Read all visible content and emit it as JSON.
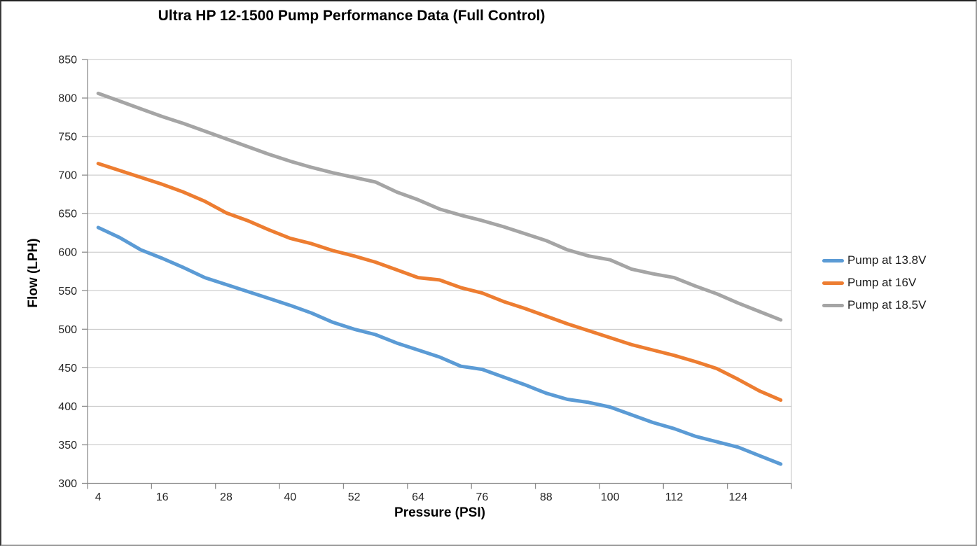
{
  "chart_data": {
    "type": "line",
    "title": "Ultra HP 12-1500 Pump Performance Data (Full Control)",
    "xlabel": "Pressure (PSI)",
    "ylabel": "Flow (LPH)",
    "x": [
      4,
      8,
      12,
      16,
      20,
      24,
      28,
      32,
      36,
      40,
      44,
      48,
      52,
      56,
      60,
      64,
      68,
      72,
      76,
      80,
      84,
      88,
      92,
      96,
      100,
      104,
      108,
      112,
      116,
      120,
      124,
      128,
      132
    ],
    "x_tick_labels": [
      4,
      16,
      28,
      40,
      52,
      64,
      76,
      88,
      100,
      112,
      124
    ],
    "y_ticks": [
      300,
      350,
      400,
      450,
      500,
      550,
      600,
      650,
      700,
      750,
      800,
      850
    ],
    "ylim": [
      300,
      850
    ],
    "grid": "horizontal",
    "legend_position": "right",
    "series": [
      {
        "name": "Pump at 13.8V",
        "color": "#5B9BD5",
        "values": [
          632,
          619,
          603,
          592,
          580,
          567,
          558,
          549,
          540,
          531,
          521,
          509,
          500,
          493,
          482,
          473,
          464,
          452,
          448,
          438,
          428,
          417,
          409,
          405,
          399,
          389,
          379,
          371,
          361,
          354,
          347,
          336,
          325
        ]
      },
      {
        "name": "Pump at 16V",
        "color": "#ED7D31",
        "values": [
          715,
          706,
          697,
          688,
          678,
          666,
          651,
          641,
          629,
          618,
          611,
          602,
          595,
          587,
          577,
          567,
          564,
          554,
          547,
          536,
          527,
          517,
          507,
          498,
          489,
          480,
          473,
          466,
          458,
          449,
          435,
          420,
          408
        ]
      },
      {
        "name": "Pump at 18.5V",
        "color": "#A5A5A5",
        "values": [
          806,
          796,
          786,
          776,
          767,
          757,
          747,
          737,
          727,
          718,
          710,
          703,
          697,
          691,
          678,
          668,
          656,
          648,
          641,
          633,
          624,
          615,
          603,
          595,
          590,
          578,
          572,
          567,
          556,
          546,
          534,
          523,
          512
        ]
      }
    ]
  },
  "colors": {
    "gridline": "#C3C3C3",
    "axis": "#8C8C8C",
    "tick_text": "#262626",
    "title_text": "#000000"
  }
}
